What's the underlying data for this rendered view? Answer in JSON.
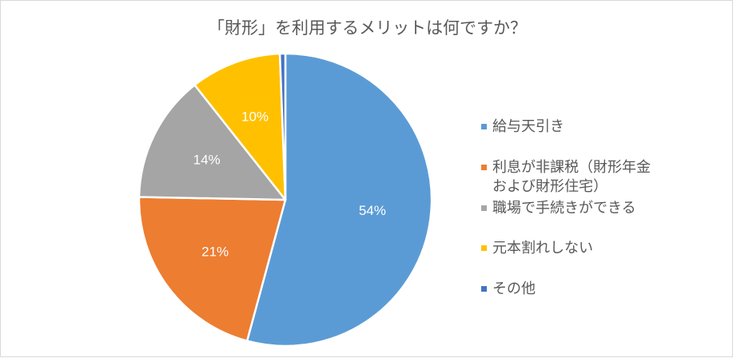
{
  "chart_data": {
    "type": "pie",
    "title": "「財形」を利用するメリットは何ですか？",
    "categories": [
      "給与天引き",
      "利息が非課税（財形年金および財形住宅）",
      "職場で手続きができる",
      "元本割れしない",
      "その他"
    ],
    "values": [
      54,
      21,
      14,
      10,
      0.6
    ],
    "data_labels": [
      "54%",
      "21%",
      "14%",
      "10%",
      ""
    ],
    "colors": [
      "#5b9bd5",
      "#ed7d31",
      "#a5a5a5",
      "#ffc000",
      "#4472c4"
    ],
    "legend_position": "right"
  }
}
